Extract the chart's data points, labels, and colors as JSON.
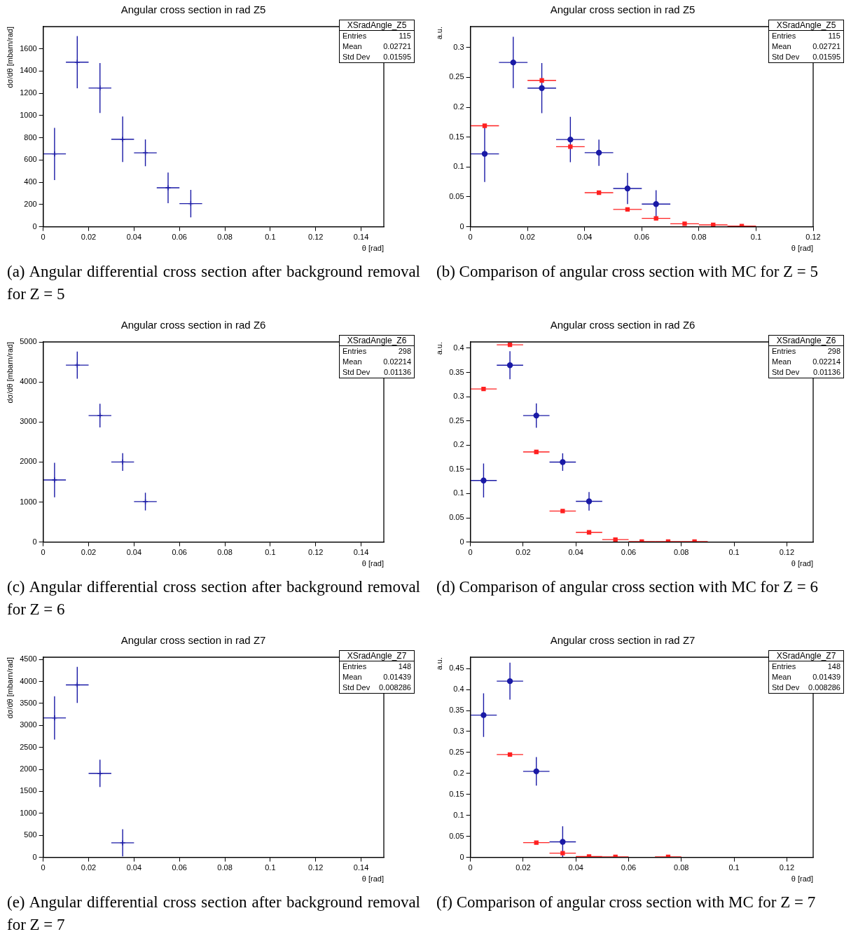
{
  "chart_data": [
    {
      "type": "scatter",
      "title": "Angular cross section in rad Z5",
      "xlabel": "θ [rad]",
      "ylabel": "dσ/dθ [mbarn/rad]",
      "xlim": [
        0,
        0.15
      ],
      "xticks": [
        0,
        0.02,
        0.04,
        0.06,
        0.08,
        0.1,
        0.12,
        0.14
      ],
      "ylim": [
        0,
        1800
      ],
      "yticks": [
        0,
        200,
        400,
        600,
        800,
        1000,
        1200,
        1400,
        1600
      ],
      "marker": "cross",
      "series": [
        {
          "color": "#1a1aa6",
          "x": [
            0.005,
            0.015,
            0.025,
            0.035,
            0.045,
            0.055,
            0.065
          ],
          "values": [
            655,
            1480,
            1248,
            787,
            665,
            350,
            208
          ],
          "errors": [
            235,
            235,
            225,
            205,
            120,
            138,
            124
          ],
          "xerrors": [
            0.005,
            0.005,
            0.005,
            0.005,
            0.005,
            0.005,
            0.005
          ]
        }
      ],
      "annotations": [
        "XSradAngle_Z5",
        "Entries 115",
        "Mean 0.02721",
        "Std Dev 0.01595",
        "(a) Angular differential cross section after background removal for Z = 5"
      ]
    },
    {
      "type": "scatter",
      "title": "Angular cross section in rad Z5",
      "xlabel": "θ [rad]",
      "ylabel": "a.u.",
      "xlim": [
        0,
        0.12
      ],
      "xticks": [
        0,
        0.02,
        0.04,
        0.06,
        0.08,
        0.1,
        0.12
      ],
      "ylim": [
        0,
        0.335
      ],
      "yticks": [
        0,
        0.05,
        0.1,
        0.15,
        0.2,
        0.25,
        0.3
      ],
      "series": [
        {
          "color": "#ff2020",
          "marker": "square",
          "x": [
            0.005,
            0.025,
            0.035,
            0.045,
            0.055,
            0.065,
            0.075,
            0.085,
            0.095
          ],
          "values": [
            0.169,
            0.245,
            0.134,
            0.057,
            0.029,
            0.014,
            0.005,
            0.003,
            0.001
          ],
          "xerrors": [
            0.005,
            0.005,
            0.005,
            0.005,
            0.005,
            0.005,
            0.005,
            0.005,
            0.005
          ]
        },
        {
          "color": "#1a1aa6",
          "marker": "circle",
          "x": [
            0.005,
            0.015,
            0.025,
            0.035,
            0.045,
            0.055,
            0.065
          ],
          "values": [
            0.122,
            0.275,
            0.232,
            0.146,
            0.124,
            0.064,
            0.038
          ],
          "errors": [
            0.047,
            0.043,
            0.042,
            0.038,
            0.022,
            0.026,
            0.023
          ],
          "xerrors": [
            0.005,
            0.005,
            0.005,
            0.005,
            0.005,
            0.005,
            0.005
          ]
        }
      ],
      "annotations": [
        "XSradAngle_Z5",
        "Entries 115",
        "Mean 0.02721",
        "Std Dev 0.01595",
        "(b) Comparison of angular cross section with MC for Z = 5"
      ]
    },
    {
      "type": "scatter",
      "title": "Angular cross section in rad Z6",
      "xlabel": "θ [rad]",
      "ylabel": "dσ/dθ [mbarn/rad]",
      "xlim": [
        0,
        0.15
      ],
      "xticks": [
        0,
        0.02,
        0.04,
        0.06,
        0.08,
        0.1,
        0.12,
        0.14
      ],
      "ylim": [
        0,
        5000
      ],
      "yticks": [
        0,
        1000,
        2000,
        3000,
        4000,
        5000
      ],
      "marker": "cross",
      "series": [
        {
          "color": "#1a1aa6",
          "x": [
            0.005,
            0.015,
            0.025,
            0.035,
            0.045
          ],
          "values": [
            1550,
            4420,
            3160,
            2000,
            1010
          ],
          "errors": [
            430,
            340,
            295,
            220,
            220
          ],
          "xerrors": [
            0.005,
            0.005,
            0.005,
            0.005,
            0.005
          ]
        }
      ],
      "annotations": [
        "XSradAngle_Z6",
        "Entries 298",
        "Mean 0.02214",
        "Std Dev 0.01136",
        "(c) Angular differential cross section after background removal for Z = 6"
      ]
    },
    {
      "type": "scatter",
      "title": "Angular cross section in rad Z6",
      "xlabel": "θ [rad]",
      "ylabel": "a.u.",
      "xlim": [
        0,
        0.13
      ],
      "xticks": [
        0,
        0.02,
        0.04,
        0.06,
        0.08,
        0.1,
        0.12
      ],
      "ylim": [
        0,
        0.413
      ],
      "yticks": [
        0,
        0.05,
        0.1,
        0.15,
        0.2,
        0.25,
        0.3,
        0.35,
        0.4
      ],
      "series": [
        {
          "color": "#ff2020",
          "marker": "square",
          "x": [
            0.005,
            0.015,
            0.025,
            0.035,
            0.045,
            0.055,
            0.065,
            0.075,
            0.085
          ],
          "values": [
            0.316,
            0.407,
            0.186,
            0.064,
            0.02,
            0.005,
            0.001,
            0.001,
            0.001
          ],
          "xerrors": [
            0.005,
            0.005,
            0.005,
            0.005,
            0.005,
            0.005,
            0.005,
            0.005,
            0.005
          ]
        },
        {
          "color": "#1a1aa6",
          "marker": "circle",
          "x": [
            0.005,
            0.015,
            0.025,
            0.035,
            0.045
          ],
          "values": [
            0.127,
            0.365,
            0.261,
            0.165,
            0.084
          ],
          "errors": [
            0.035,
            0.029,
            0.025,
            0.018,
            0.019
          ],
          "xerrors": [
            0.005,
            0.005,
            0.005,
            0.005,
            0.005
          ]
        }
      ],
      "annotations": [
        "XSradAngle_Z6",
        "Entries 298",
        "Mean 0.02214",
        "Std Dev 0.01136",
        "(d) Comparison of angular cross section with MC for Z = 6"
      ]
    },
    {
      "type": "scatter",
      "title": "Angular cross section in rad Z7",
      "xlabel": "θ [rad]",
      "ylabel": "dσ/dθ [mbarn/rad]",
      "xlim": [
        0,
        0.15
      ],
      "xticks": [
        0,
        0.02,
        0.04,
        0.06,
        0.08,
        0.1,
        0.12,
        0.14
      ],
      "ylim": [
        0,
        4550
      ],
      "yticks": [
        0,
        500,
        1000,
        1500,
        2000,
        2500,
        3000,
        3500,
        4000,
        4500
      ],
      "marker": "cross",
      "series": [
        {
          "color": "#1a1aa6",
          "x": [
            0.005,
            0.015,
            0.025,
            0.035
          ],
          "values": [
            3170,
            3920,
            1910,
            330
          ],
          "errors": [
            490,
            410,
            310,
            310
          ],
          "xerrors": [
            0.005,
            0.005,
            0.005,
            0.005
          ]
        }
      ],
      "annotations": [
        "XSradAngle_Z7",
        "Entries 148",
        "Mean 0.01439",
        "Std Dev 0.008286",
        "(e) Angular differential cross section after background removal for Z = 7"
      ]
    },
    {
      "type": "scatter",
      "title": "Angular cross section in rad Z7",
      "xlabel": "θ [rad]",
      "ylabel": "a.u.",
      "xlim": [
        0,
        0.13
      ],
      "xticks": [
        0,
        0.02,
        0.04,
        0.06,
        0.08,
        0.1,
        0.12
      ],
      "ylim": [
        0,
        0.477
      ],
      "yticks": [
        0,
        0.05,
        0.1,
        0.15,
        0.2,
        0.25,
        0.3,
        0.35,
        0.4,
        0.45
      ],
      "series": [
        {
          "color": "#ff2020",
          "marker": "square",
          "x": [
            0.015,
            0.025,
            0.035,
            0.045,
            0.055,
            0.075
          ],
          "values": [
            0.245,
            0.035,
            0.01,
            0.002,
            0.001,
            0.001
          ],
          "xerrors": [
            0.005,
            0.005,
            0.005,
            0.005,
            0.005,
            0.005
          ]
        },
        {
          "color": "#1a1aa6",
          "marker": "circle",
          "x": [
            0.005,
            0.015,
            0.025,
            0.035
          ],
          "values": [
            0.339,
            0.42,
            0.205,
            0.037
          ],
          "errors": [
            0.052,
            0.044,
            0.034,
            0.037
          ],
          "xerrors": [
            0.005,
            0.005,
            0.005,
            0.005
          ]
        }
      ],
      "annotations": [
        "XSradAngle_Z7",
        "Entries 148",
        "Mean 0.01439",
        "Std Dev 0.008286",
        "(f) Comparison of angular cross section with MC for Z = 7"
      ]
    }
  ]
}
